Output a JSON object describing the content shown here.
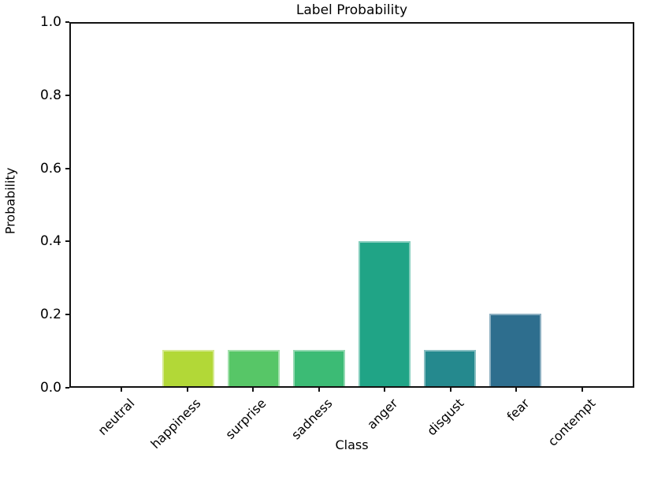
{
  "chart_data": {
    "type": "bar",
    "title": "Label Probability",
    "xlabel": "Class",
    "ylabel": "Probability",
    "categories": [
      "neutral",
      "happiness",
      "surprise",
      "sadness",
      "anger",
      "disgust",
      "fear",
      "contempt"
    ],
    "values": [
      0.0,
      0.1,
      0.1,
      0.1,
      0.4,
      0.1,
      0.2,
      0.0
    ],
    "bar_colors": [
      "#fde725",
      "#b2d837",
      "#57c667",
      "#3cbb75",
      "#20a486",
      "#25898e",
      "#2e6e8e",
      "#46327e"
    ],
    "ylim": [
      0,
      1.0
    ],
    "yticks": [
      "0.0",
      "0.2",
      "0.4",
      "0.6",
      "0.8",
      "1.0"
    ],
    "xtick_rotation_deg": 45,
    "grid": false,
    "legend": null,
    "bar_edge_effect": "light outline on each bar",
    "colors": {
      "spine": "#121212",
      "text": "#000000",
      "background": "#ffffff"
    }
  }
}
